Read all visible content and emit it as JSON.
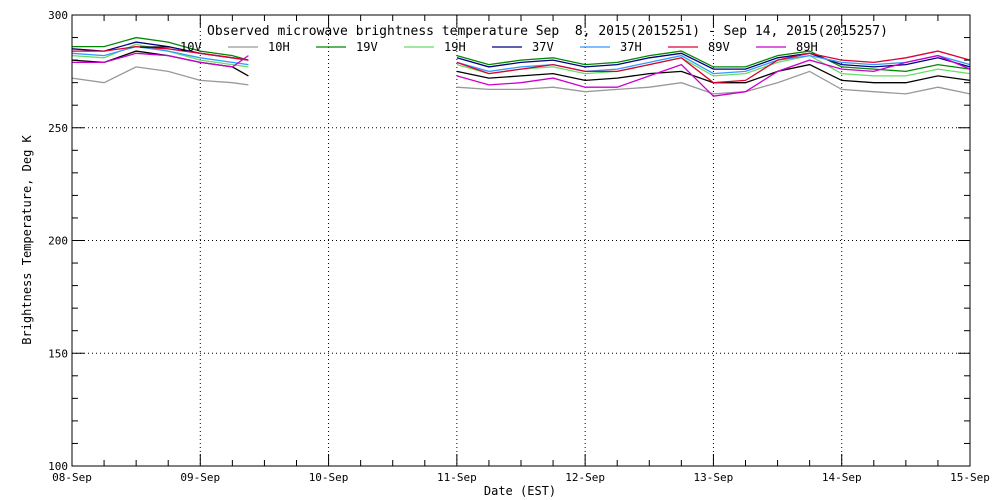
{
  "chart_data": {
    "type": "line",
    "title": "Observed microwave brightness temperature Sep  8, 2015(2015251) - Sep 14, 2015(2015257)",
    "xlabel": "Date (EST)",
    "ylabel": "Brightness Temperature, Deg K",
    "xlim": [
      "2015-09-08",
      "2015-09-15"
    ],
    "ylim": [
      100,
      300
    ],
    "yticks": [
      100,
      150,
      200,
      250,
      300
    ],
    "xticks": [
      "08-Sep",
      "09-Sep",
      "10-Sep",
      "11-Sep",
      "12-Sep",
      "13-Sep",
      "14-Sep",
      "15-Sep"
    ],
    "grid": true,
    "legend_position": "top",
    "x": [
      "2015-09-08T00:00",
      "2015-09-08T06:00",
      "2015-09-08T12:00",
      "2015-09-08T18:00",
      "2015-09-09T00:00",
      "2015-09-09T06:00",
      "2015-09-09T09:00",
      "2015-09-10T21:00",
      "2015-09-11T00:00",
      "2015-09-11T06:00",
      "2015-09-11T12:00",
      "2015-09-11T18:00",
      "2015-09-12T00:00",
      "2015-09-12T06:00",
      "2015-09-12T12:00",
      "2015-09-12T18:00",
      "2015-09-13T00:00",
      "2015-09-13T06:00",
      "2015-09-13T12:00",
      "2015-09-13T18:00",
      "2015-09-14T00:00",
      "2015-09-14T06:00",
      "2015-09-14T12:00",
      "2015-09-14T18:00",
      "2015-09-15T00:00"
    ],
    "series": [
      {
        "name": "10V",
        "color": "#000000",
        "values": [
          280,
          279,
          284,
          282,
          279,
          277,
          273,
          null,
          275,
          272,
          273,
          274,
          271,
          272,
          274,
          275,
          270,
          270,
          275,
          278,
          271,
          270,
          270,
          273,
          271
        ]
      },
      {
        "name": "10H",
        "color": "#999999",
        "values": [
          272,
          270,
          277,
          275,
          271,
          270,
          269,
          null,
          268,
          267,
          267,
          268,
          266,
          267,
          268,
          270,
          265,
          266,
          270,
          275,
          267,
          266,
          265,
          268,
          265
        ]
      },
      {
        "name": "19V",
        "color": "#008800",
        "values": [
          286,
          286,
          290,
          288,
          284,
          282,
          280,
          null,
          282,
          278,
          280,
          281,
          278,
          279,
          282,
          284,
          277,
          277,
          282,
          284,
          277,
          276,
          275,
          278,
          276
        ]
      },
      {
        "name": "19H",
        "color": "#66dd66",
        "values": [
          282,
          281,
          287,
          284,
          280,
          278,
          277,
          null,
          278,
          274,
          276,
          277,
          274,
          275,
          278,
          281,
          273,
          274,
          279,
          282,
          274,
          273,
          273,
          276,
          274
        ]
      },
      {
        "name": "37V",
        "color": "#000080",
        "values": [
          285,
          284,
          288,
          286,
          283,
          281,
          280,
          null,
          281,
          277,
          279,
          280,
          277,
          278,
          281,
          283,
          276,
          276,
          281,
          283,
          278,
          277,
          278,
          281,
          277
        ]
      },
      {
        "name": "37H",
        "color": "#3399ff",
        "values": [
          283,
          282,
          286,
          284,
          281,
          279,
          278,
          null,
          279,
          275,
          277,
          278,
          275,
          276,
          279,
          282,
          274,
          275,
          280,
          282,
          279,
          278,
          279,
          282,
          278
        ]
      },
      {
        "name": "89V",
        "color": "#dd0033",
        "values": [
          284,
          284,
          286,
          285,
          283,
          281,
          280,
          null,
          279,
          274,
          276,
          278,
          275,
          275,
          278,
          281,
          270,
          271,
          280,
          283,
          280,
          279,
          281,
          284,
          280
        ]
      },
      {
        "name": "89H",
        "color": "#cc00cc",
        "values": [
          279,
          279,
          283,
          282,
          279,
          277,
          282,
          null,
          273,
          269,
          270,
          272,
          268,
          268,
          273,
          278,
          264,
          266,
          275,
          280,
          276,
          275,
          279,
          282,
          276
        ]
      }
    ]
  }
}
